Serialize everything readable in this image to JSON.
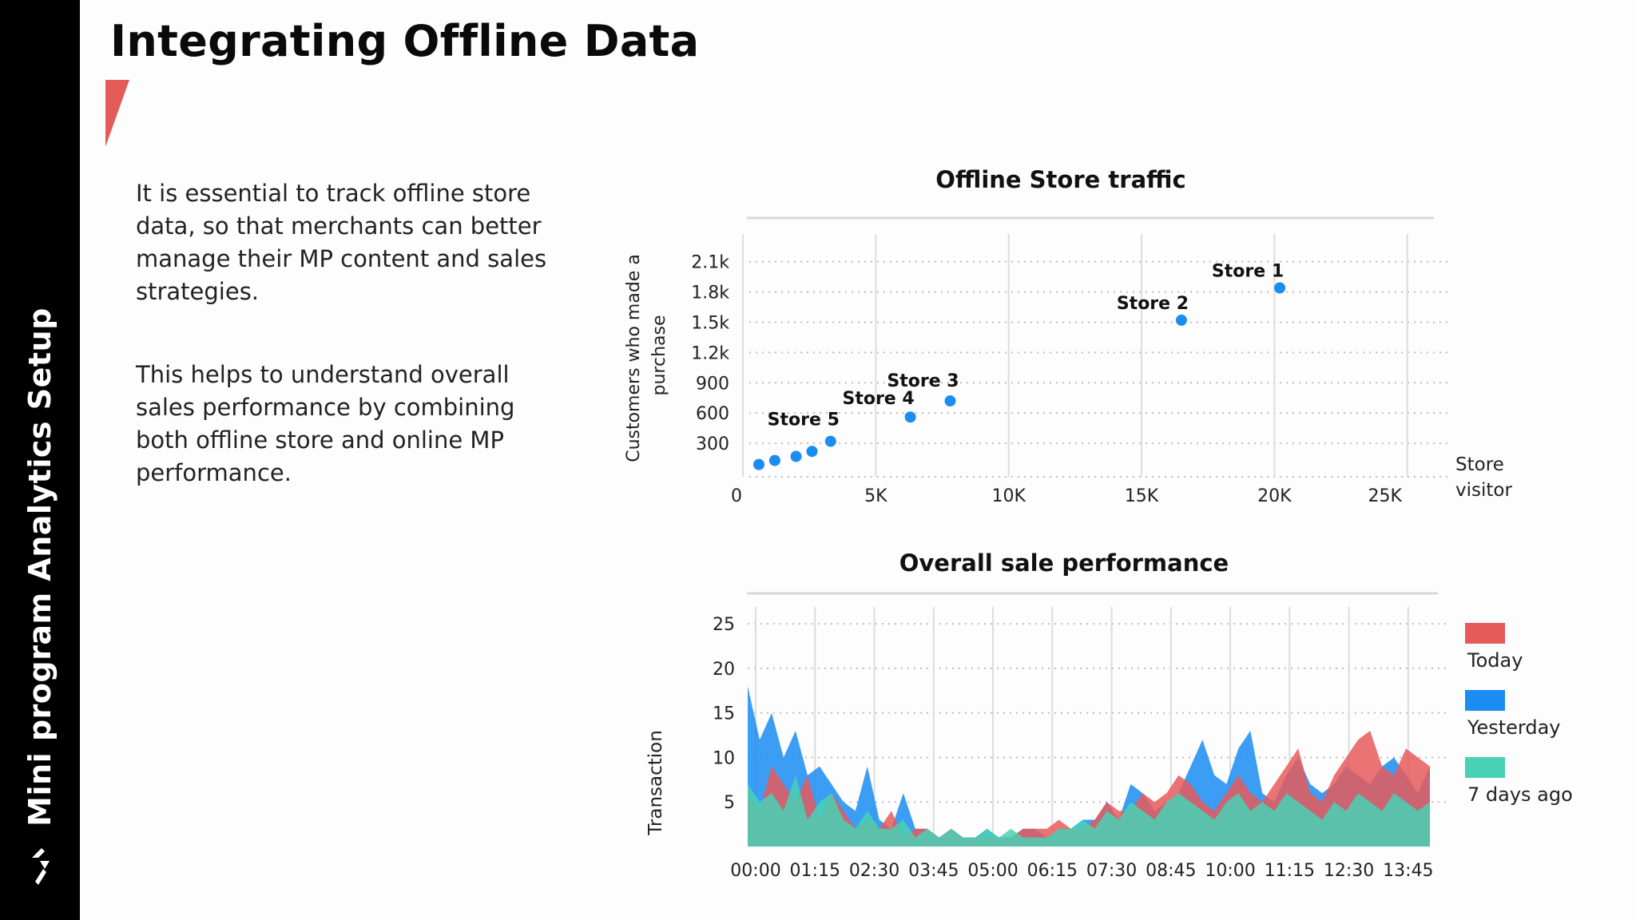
{
  "sidebar": {
    "title": "Mini program Analytics Setup"
  },
  "page": {
    "title": "Integrating Offline Data",
    "paragraphs": [
      "It is essential to track offline store data, so that merchants can better manage their MP content and sales strategies.",
      "This helps to understand overall sales performance by combining both offline store and online MP performance."
    ]
  },
  "colors": {
    "accent": "#e25b57",
    "point": "#1a8cf2",
    "today": "#e65a5a",
    "yesterday": "#1a8cf2",
    "seven_days": "#48d1b4",
    "sidebar": "#000000"
  },
  "chart_data": [
    {
      "type": "scatter",
      "title": "Offline Store traffic",
      "xlabel": "Store visitor",
      "ylabel": "Customers who made a purchase",
      "xlim": [
        0,
        26000
      ],
      "ylim": [
        0,
        2200
      ],
      "x_ticks": [
        0,
        5000,
        10000,
        15000,
        20000,
        25000
      ],
      "x_tick_labels": [
        "0",
        "5K",
        "10K",
        "15K",
        "20K",
        "25K"
      ],
      "y_ticks": [
        300,
        600,
        900,
        1200,
        1500,
        1800,
        2100
      ],
      "y_tick_labels": [
        "300",
        "600",
        "900",
        "1.2k",
        "1.5k",
        "1.8k",
        "2.1k"
      ],
      "grid": true,
      "points": [
        {
          "x": 600,
          "y": 90,
          "label": ""
        },
        {
          "x": 1200,
          "y": 130,
          "label": ""
        },
        {
          "x": 2000,
          "y": 170,
          "label": ""
        },
        {
          "x": 2600,
          "y": 220,
          "label": ""
        },
        {
          "x": 3300,
          "y": 320,
          "label": "Store 5"
        },
        {
          "x": 6300,
          "y": 560,
          "label": "Store 4"
        },
        {
          "x": 7800,
          "y": 720,
          "label": "Store 3"
        },
        {
          "x": 16500,
          "y": 1520,
          "label": "Store 2"
        },
        {
          "x": 20200,
          "y": 1840,
          "label": "Store 1"
        }
      ]
    },
    {
      "type": "area",
      "title": "Overall sale performance",
      "ylabel": "Transaction",
      "ylim": [
        0,
        26
      ],
      "y_ticks": [
        5,
        10,
        15,
        20,
        25
      ],
      "x_tick_labels": [
        "00:00",
        "01:15",
        "02:30",
        "03:45",
        "05:00",
        "06:15",
        "07:30",
        "08:45",
        "10:00",
        "11:15",
        "12:30",
        "13:45"
      ],
      "legend_position": "right",
      "grid": true,
      "series": [
        {
          "name": "Today",
          "color": "#e65a5a",
          "values": [
            6,
            4,
            9,
            7,
            5,
            8,
            3,
            6,
            4,
            2,
            3,
            2,
            4,
            1,
            2,
            2,
            1,
            2,
            1,
            1,
            1,
            1,
            1,
            2,
            2,
            2,
            3,
            2,
            2,
            3,
            5,
            4,
            4,
            6,
            5,
            6,
            8,
            7,
            5,
            4,
            6,
            8,
            6,
            5,
            7,
            9,
            11,
            6,
            5,
            8,
            10,
            12,
            13,
            9,
            8,
            11,
            10,
            9
          ]
        },
        {
          "name": "Yesterday",
          "color": "#1a8cf2",
          "values": [
            18,
            12,
            15,
            10,
            13,
            8,
            9,
            7,
            5,
            4,
            9,
            3,
            2,
            6,
            2,
            2,
            1,
            2,
            1,
            1,
            2,
            1,
            1,
            2,
            2,
            1,
            2,
            2,
            3,
            3,
            5,
            3,
            7,
            6,
            4,
            5,
            6,
            9,
            12,
            8,
            7,
            11,
            13,
            6,
            5,
            8,
            10,
            7,
            6,
            7,
            9,
            8,
            7,
            9,
            10,
            8,
            6,
            9
          ]
        },
        {
          "name": "7 days ago",
          "color": "#48d1b4",
          "values": [
            7,
            5,
            6,
            4,
            8,
            3,
            5,
            6,
            3,
            2,
            4,
            2,
            2,
            3,
            1,
            2,
            1,
            2,
            1,
            1,
            2,
            1,
            2,
            1,
            1,
            1,
            2,
            2,
            3,
            2,
            4,
            3,
            5,
            4,
            3,
            5,
            6,
            5,
            4,
            3,
            5,
            6,
            4,
            5,
            4,
            6,
            5,
            4,
            3,
            5,
            4,
            6,
            5,
            4,
            6,
            5,
            4,
            5
          ]
        }
      ]
    }
  ]
}
